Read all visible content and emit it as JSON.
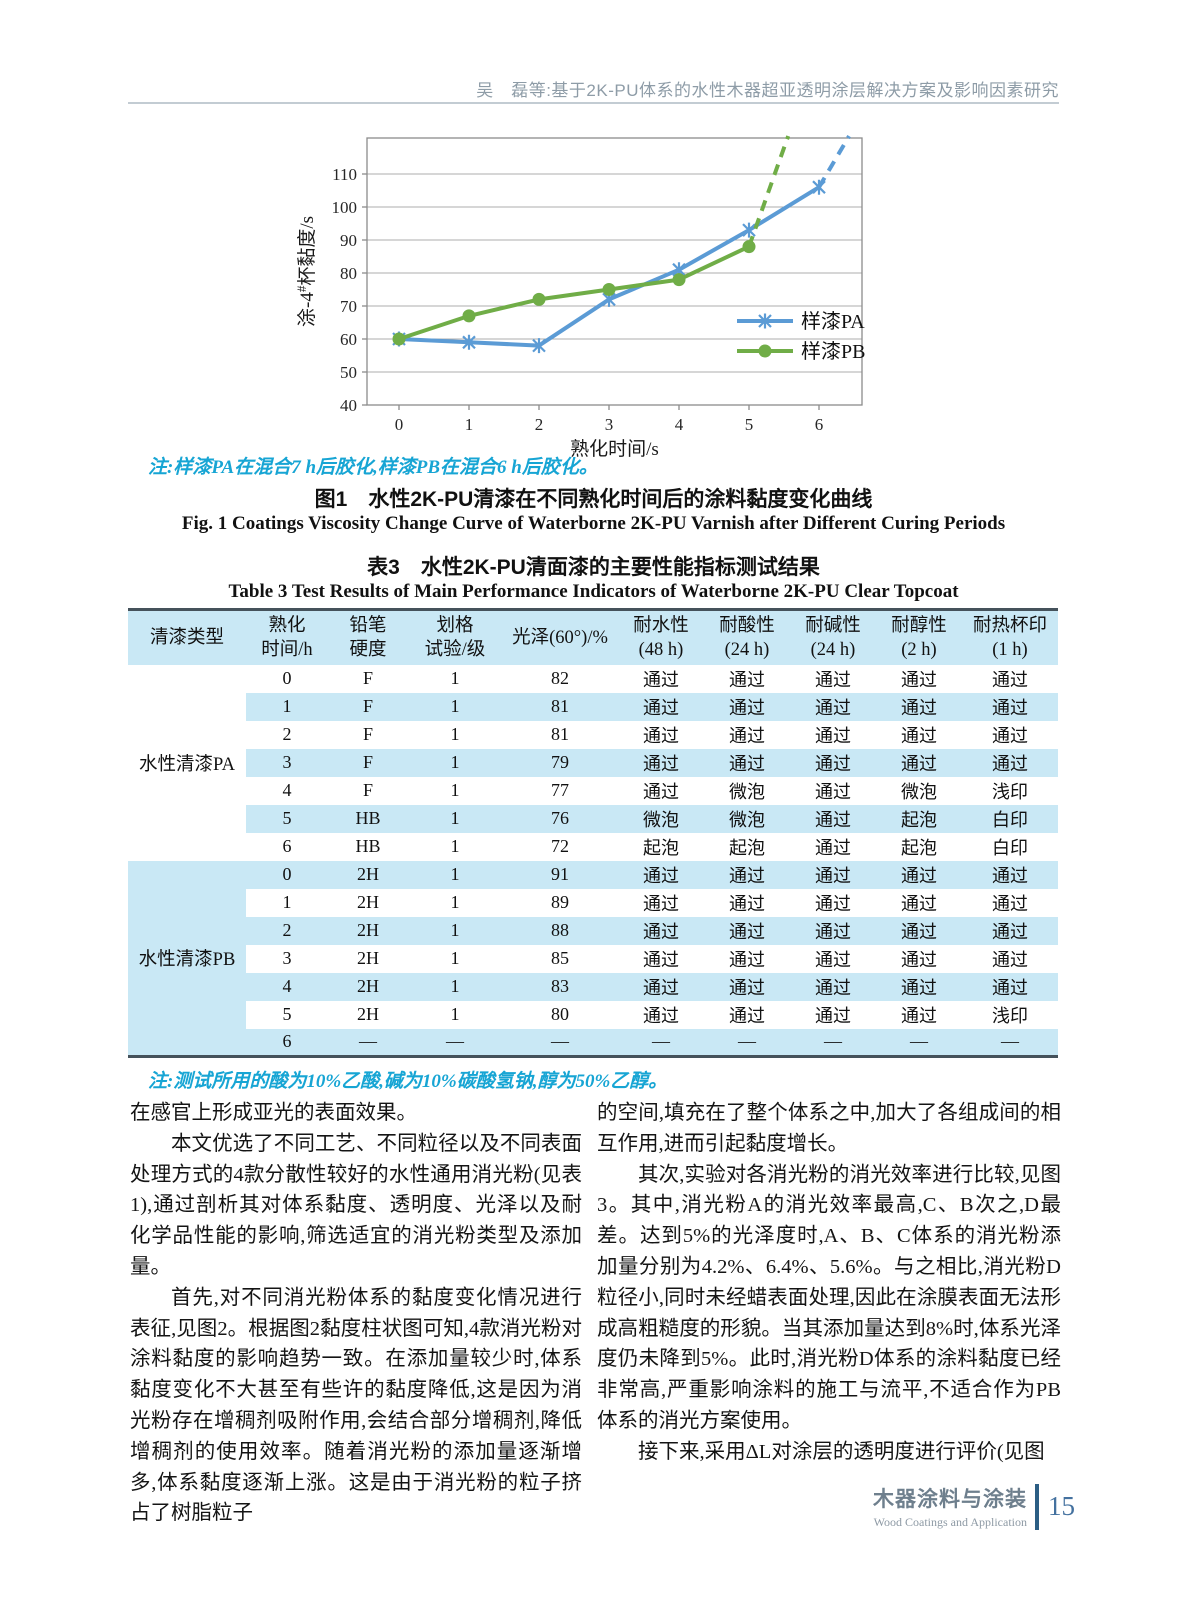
{
  "page": {
    "running_head": "吴　磊等:基于2K-PU体系的水性木器超亚透明涂层解决方案及影响因素研究",
    "footer": {
      "journal_cn": "木器涂料与涂装",
      "journal_en": "Wood Coatings and Application",
      "page_number": "15"
    }
  },
  "figure": {
    "note": "注:样漆PA在混合7 h后胶化,样漆PB在混合6 h后胶化。",
    "caption_cn": "图1　水性2K-PU清漆在不同熟化时间后的涂料黏度变化曲线",
    "caption_en": "Fig. 1   Coatings Viscosity Change Curve of Waterborne 2K-PU Varnish after Different Curing Periods"
  },
  "chart_data": {
    "type": "line",
    "title": "",
    "xlabel": "熟化时间/s",
    "ylabel": "涂-4#杯黏度/s",
    "xticks": [
      0,
      1,
      2,
      3,
      4,
      5,
      6
    ],
    "yticks": [
      40,
      50,
      60,
      70,
      80,
      90,
      100,
      110
    ],
    "ylim": [
      40,
      121
    ],
    "grid": "horizontal",
    "legend_position": "right-middle",
    "series": [
      {
        "name": "样漆PA",
        "color": "#5B9BD5",
        "marker": "asterisk",
        "x": [
          0,
          1,
          2,
          3,
          4,
          5,
          6
        ],
        "values": [
          60,
          59,
          58,
          72,
          81,
          93,
          106
        ],
        "dashed_extension": [
          [
            6,
            106
          ],
          [
            6.43,
            121.5
          ]
        ]
      },
      {
        "name": "样漆PB",
        "color": "#70AD47",
        "marker": "circle",
        "x": [
          0,
          1,
          2,
          3,
          4,
          5
        ],
        "values": [
          60,
          67,
          72,
          75,
          78,
          88
        ],
        "dashed_extension": [
          [
            5,
            88
          ],
          [
            5.56,
            121.5
          ]
        ]
      }
    ]
  },
  "table": {
    "title_cn": "表3　水性2K-PU清面漆的主要性能指标测试结果",
    "title_en": "Table 3   Test Results of Main Performance Indicators of Waterborne 2K-PU Clear Topcoat",
    "headers": [
      "清漆类型",
      "熟化\n时间/h",
      "铅笔\n硬度",
      "划格\n试验/级",
      "光泽(60°)/%",
      "耐水性\n(48 h)",
      "耐酸性\n(24 h)",
      "耐碱性\n(24 h)",
      "耐醇性\n(2 h)",
      "耐热杯印\n(1 h)"
    ],
    "groups": [
      {
        "label": "水性清漆PA",
        "label_bg": "#FFFFFF",
        "striped": "odd",
        "rows": [
          [
            "0",
            "F",
            "1",
            "82",
            "通过",
            "通过",
            "通过",
            "通过",
            "通过"
          ],
          [
            "1",
            "F",
            "1",
            "81",
            "通过",
            "通过",
            "通过",
            "通过",
            "通过"
          ],
          [
            "2",
            "F",
            "1",
            "81",
            "通过",
            "通过",
            "通过",
            "通过",
            "通过"
          ],
          [
            "3",
            "F",
            "1",
            "79",
            "通过",
            "通过",
            "通过",
            "通过",
            "通过"
          ],
          [
            "4",
            "F",
            "1",
            "77",
            "通过",
            "微泡",
            "通过",
            "微泡",
            "浅印"
          ],
          [
            "5",
            "HB",
            "1",
            "76",
            "微泡",
            "微泡",
            "通过",
            "起泡",
            "白印"
          ],
          [
            "6",
            "HB",
            "1",
            "72",
            "起泡",
            "起泡",
            "通过",
            "起泡",
            "白印"
          ]
        ]
      },
      {
        "label": "水性清漆PB",
        "label_bg": "#C9E8F5",
        "striped": "even",
        "rows": [
          [
            "0",
            "2H",
            "1",
            "91",
            "通过",
            "通过",
            "通过",
            "通过",
            "通过"
          ],
          [
            "1",
            "2H",
            "1",
            "89",
            "通过",
            "通过",
            "通过",
            "通过",
            "通过"
          ],
          [
            "2",
            "2H",
            "1",
            "88",
            "通过",
            "通过",
            "通过",
            "通过",
            "通过"
          ],
          [
            "3",
            "2H",
            "1",
            "85",
            "通过",
            "通过",
            "通过",
            "通过",
            "通过"
          ],
          [
            "4",
            "2H",
            "1",
            "83",
            "通过",
            "通过",
            "通过",
            "通过",
            "通过"
          ],
          [
            "5",
            "2H",
            "1",
            "80",
            "通过",
            "通过",
            "通过",
            "通过",
            "浅印"
          ],
          [
            "6",
            "—",
            "—",
            "—",
            "—",
            "—",
            "—",
            "—",
            "—"
          ]
        ]
      }
    ],
    "note": "注:测试所用的酸为10%乙酸,碱为10%碳酸氢钠,醇为50%乙醇。"
  },
  "body": {
    "left": [
      {
        "text": "在感官上形成亚光的表面效果。"
      },
      {
        "text": "本文优选了不同工艺、不同粒径以及不同表面处理方式的4款分散性较好的水性通用消光粉(见表1),通过剖析其对体系黏度、透明度、光泽以及耐化学品性能的影响,筛选适宜的消光粉类型及添加量。"
      },
      {
        "text": "首先,对不同消光粉体系的黏度变化情况进行表征,见图2。根据图2黏度柱状图可知,4款消光粉对涂料黏度的影响趋势一致。在添加量较少时,体系黏度变化不大甚至有些许的黏度降低,这是因为消光粉存在增稠剂吸附作用,会结合部分增稠剂,降低增稠剂的使用效率。随着消光粉的添加量逐渐增多,体系黏度逐渐上涨。这是由于消光粉的粒子挤占了树脂粒子"
      }
    ],
    "right": [
      {
        "text": "的空间,填充在了整个体系之中,加大了各组成间的相互作用,进而引起黏度增长。"
      },
      {
        "text": "其次,实验对各消光粉的消光效率进行比较,见图3。其中,消光粉A的消光效率最高,C、B次之,D最差。达到5%的光泽度时,A、B、C体系的消光粉添加量分别为4.2%、6.4%、5.6%。与之相比,消光粉D粒径小,同时未经蜡表面处理,因此在涂膜表面无法形成高粗糙度的形貌。当其添加量达到8%时,体系光泽度仍未降到5%。此时,消光粉D体系的涂料黏度已经非常高,严重影响涂料的施工与流平,不适合作为PB体系的消光方案使用。"
      },
      {
        "text": "接下来,采用ΔL对涂层的透明度进行评价(见图"
      }
    ]
  },
  "colors": {
    "series_pa": "#5B9BD5",
    "series_pb": "#70AD47",
    "table_stripe": "#C9E8F5",
    "note_teal": "#17A5D4",
    "footer_blue": "#44719F"
  }
}
